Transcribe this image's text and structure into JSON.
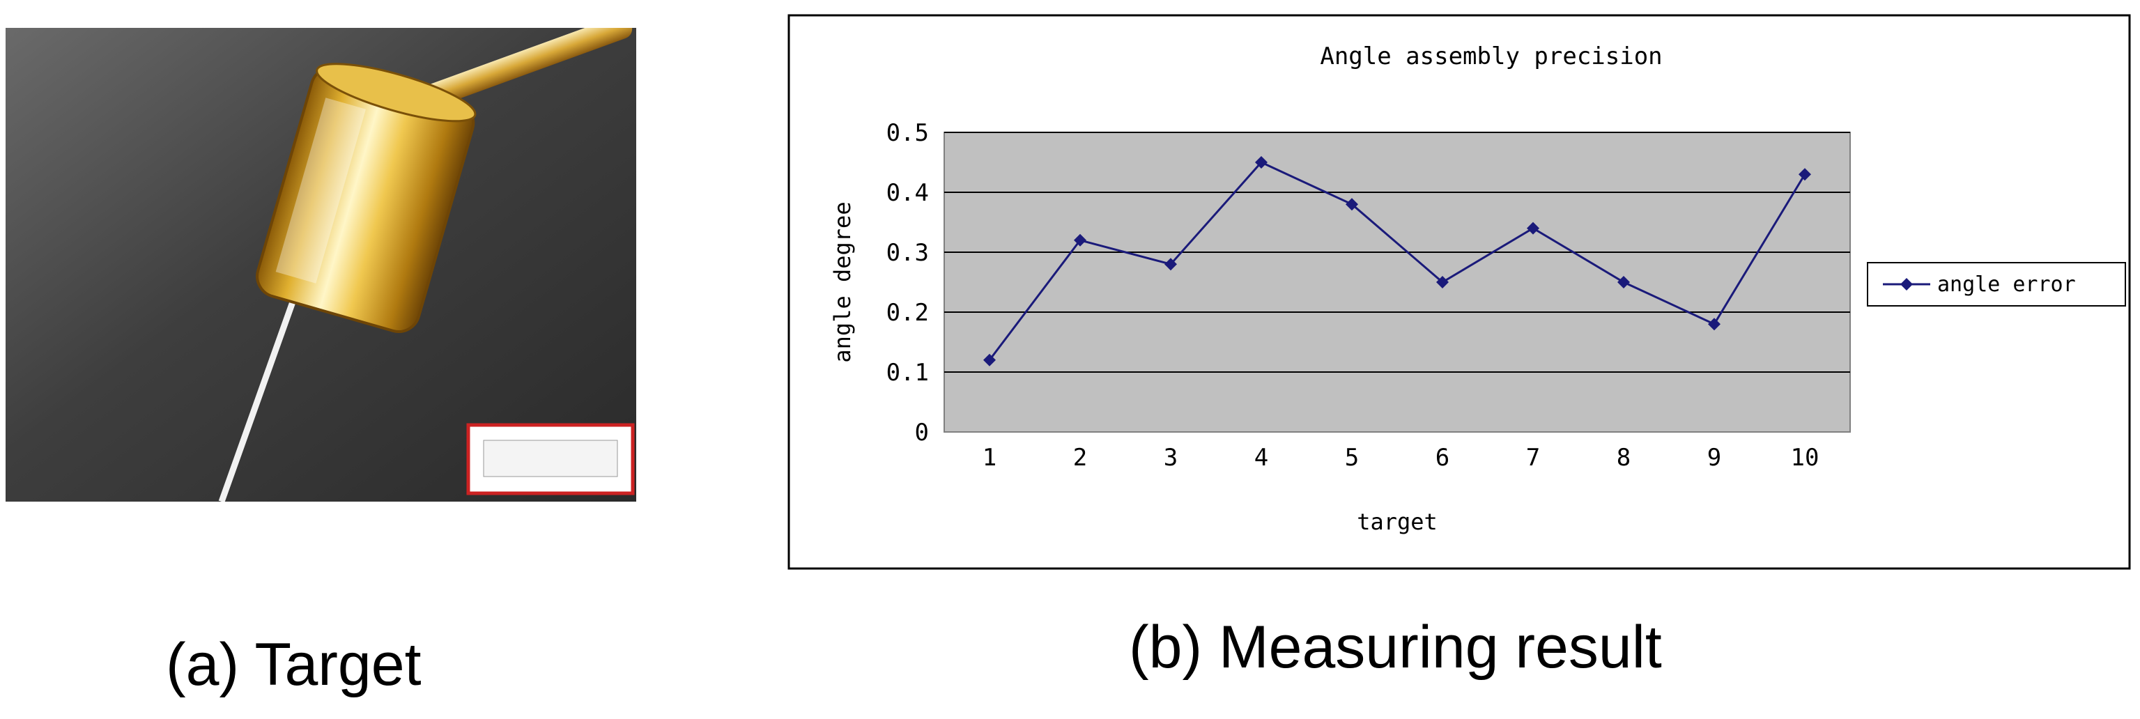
{
  "panel_a": {
    "caption": "(a) Target"
  },
  "panel_b": {
    "caption": "(b) Measuring result"
  },
  "chart_data": {
    "type": "line",
    "title": "Angle assembly precision",
    "xlabel": "target",
    "ylabel": "angle degree",
    "categories": [
      "1",
      "2",
      "3",
      "4",
      "5",
      "6",
      "7",
      "8",
      "9",
      "10"
    ],
    "series": [
      {
        "name": "angle error",
        "values": [
          0.12,
          0.32,
          0.28,
          0.45,
          0.38,
          0.25,
          0.34,
          0.25,
          0.18,
          0.43
        ],
        "color": "#1a1a7a",
        "marker": "diamond"
      }
    ],
    "ylim": [
      0,
      0.5
    ],
    "yticks": [
      "0",
      "0.1",
      "0.2",
      "0.3",
      "0.4",
      "0.5"
    ],
    "grid": true,
    "plot_background": "#c0c0c0",
    "legend": "right"
  }
}
